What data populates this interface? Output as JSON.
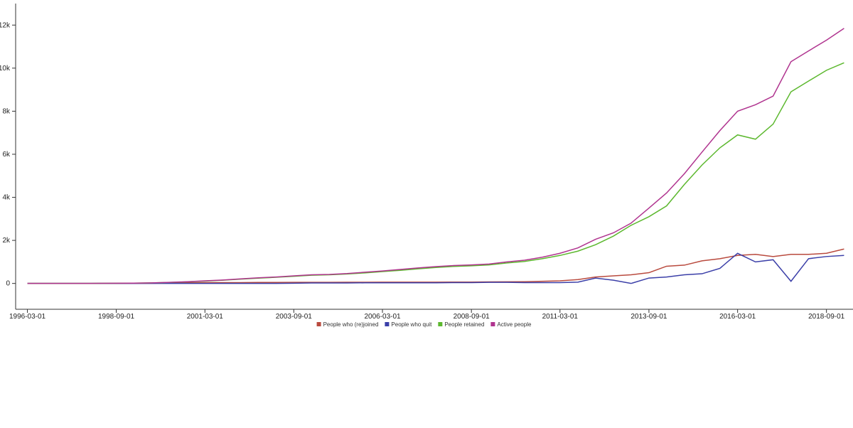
{
  "chart_data": {
    "type": "line",
    "x": [
      "1996-03-01",
      "1996-09-01",
      "1997-03-01",
      "1997-09-01",
      "1998-03-01",
      "1998-09-01",
      "1999-03-01",
      "1999-09-01",
      "2000-03-01",
      "2000-09-01",
      "2001-03-01",
      "2001-09-01",
      "2002-03-01",
      "2002-09-01",
      "2003-03-01",
      "2003-09-01",
      "2004-03-01",
      "2004-09-01",
      "2005-03-01",
      "2005-09-01",
      "2006-03-01",
      "2006-09-01",
      "2007-03-01",
      "2007-09-01",
      "2008-03-01",
      "2008-09-01",
      "2009-03-01",
      "2009-09-01",
      "2010-03-01",
      "2010-09-01",
      "2011-03-01",
      "2011-09-01",
      "2012-03-01",
      "2012-09-01",
      "2013-03-01",
      "2013-09-01",
      "2014-03-01",
      "2014-09-01",
      "2015-03-01",
      "2015-09-01",
      "2016-03-01",
      "2016-09-01",
      "2017-03-01",
      "2017-09-01",
      "2018-03-01",
      "2018-09-01",
      "2019-03-01"
    ],
    "series": [
      {
        "name": "People who (re)joined",
        "color": "#b94a3e",
        "values": [
          0,
          0,
          0,
          0,
          0,
          0,
          5,
          10,
          20,
          30,
          40,
          40,
          40,
          45,
          45,
          50,
          50,
          50,
          55,
          55,
          60,
          60,
          60,
          60,
          65,
          65,
          70,
          75,
          80,
          100,
          120,
          180,
          300,
          350,
          400,
          500,
          800,
          850,
          1050,
          1150,
          1300,
          1350,
          1250,
          1350,
          1350,
          1400,
          1600
        ]
      },
      {
        "name": "People who quit",
        "color": "#3b3fa8",
        "values": [
          0,
          0,
          0,
          0,
          0,
          0,
          0,
          0,
          0,
          0,
          0,
          0,
          0,
          0,
          0,
          10,
          20,
          20,
          20,
          30,
          30,
          30,
          30,
          30,
          40,
          40,
          50,
          50,
          40,
          40,
          40,
          60,
          250,
          150,
          0,
          250,
          300,
          400,
          450,
          700,
          1400,
          1000,
          1100,
          100,
          1150,
          1250,
          1300
        ]
      },
      {
        "name": "People retained",
        "color": "#5cb82e",
        "values": [
          0,
          0,
          0,
          0,
          5,
          10,
          15,
          25,
          45,
          75,
          110,
          150,
          200,
          245,
          285,
          330,
          380,
          400,
          440,
          490,
          550,
          610,
          680,
          740,
          790,
          820,
          860,
          950,
          1020,
          1150,
          1300,
          1500,
          1800,
          2200,
          2700,
          3100,
          3600,
          4600,
          5500,
          6300,
          6900,
          6700,
          7400,
          8900,
          9400,
          9900,
          10250
        ]
      },
      {
        "name": "Active people",
        "color": "#b0348f",
        "values": [
          0,
          0,
          0,
          0,
          5,
          10,
          15,
          25,
          50,
          80,
          120,
          160,
          210,
          260,
          300,
          350,
          400,
          420,
          460,
          520,
          580,
          650,
          720,
          780,
          830,
          860,
          900,
          1000,
          1080,
          1220,
          1400,
          1650,
          2050,
          2350,
          2800,
          3500,
          4200,
          5100,
          6100,
          7100,
          8000,
          8300,
          8700,
          10300,
          10800,
          11300,
          11850
        ]
      }
    ],
    "xlim": [
      "1995-11-01",
      "2019-06-01"
    ],
    "xticks": [
      "1996-03-01",
      "1998-09-01",
      "2001-03-01",
      "2003-09-01",
      "2006-03-01",
      "2008-09-01",
      "2011-03-01",
      "2013-09-01",
      "2016-03-01",
      "2018-09-01"
    ],
    "ylim": [
      -1200,
      13000
    ],
    "yticks": [
      0,
      {
        "value": 2000,
        "label": "2k"
      },
      {
        "value": 4000,
        "label": "4k"
      },
      {
        "value": 6000,
        "label": "6k"
      },
      {
        "value": 8000,
        "label": "8k"
      },
      {
        "value": 10000,
        "label": "10k"
      },
      {
        "value": 12000,
        "label": "12k"
      }
    ]
  }
}
